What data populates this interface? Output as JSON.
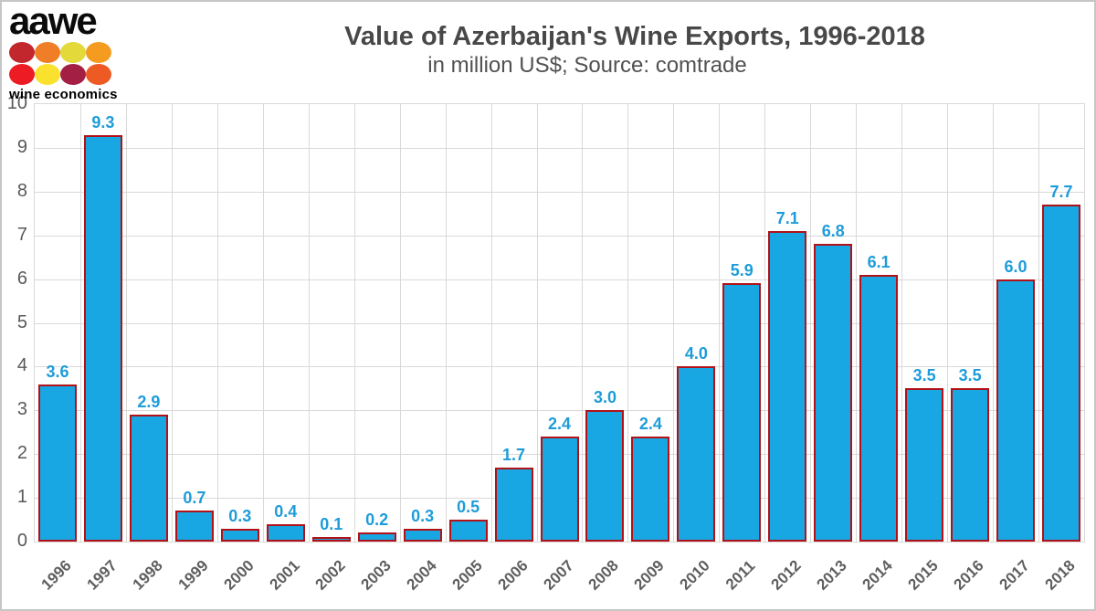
{
  "logo": {
    "brand": "aawe",
    "tagline": "wine economics",
    "dot_colors": [
      "#c1272d",
      "#f07e26",
      "#e3d93a",
      "#f59b20",
      "#ed1c24",
      "#f9e12d",
      "#a31f44",
      "#ee5a24"
    ]
  },
  "chart_data": {
    "type": "bar",
    "title": "Value of Azerbaijan's Wine Exports, 1996-2018",
    "subtitle": "in million US$; Source: comtrade",
    "categories": [
      "1996",
      "1997",
      "1998",
      "1999",
      "2000",
      "2001",
      "2002",
      "2003",
      "2004",
      "2005",
      "2006",
      "2007",
      "2008",
      "2009",
      "2010",
      "2011",
      "2012",
      "2013",
      "2014",
      "2015",
      "2016",
      "2017",
      "2018"
    ],
    "values": [
      3.6,
      9.3,
      2.9,
      0.7,
      0.3,
      0.4,
      0.1,
      0.2,
      0.3,
      0.5,
      1.7,
      2.4,
      3.0,
      2.4,
      4.0,
      5.9,
      7.1,
      6.8,
      6.1,
      3.5,
      3.5,
      6.0,
      7.7
    ],
    "data_labels": [
      "3.6",
      "9.3",
      "2.9",
      "0.7",
      "0.3",
      "0.4",
      "0.1",
      "0.2",
      "0.3",
      "0.5",
      "1.7",
      "2.4",
      "3.0",
      "2.4",
      "4.0",
      "5.9",
      "7.1",
      "6.8",
      "6.1",
      "3.5",
      "3.5",
      "6.0",
      "7.7"
    ],
    "ylim": [
      0,
      10
    ],
    "ytick_labels": [
      "0",
      "1",
      "2",
      "3",
      "4",
      "5",
      "6",
      "7",
      "8",
      "9",
      "10"
    ],
    "grid": "both",
    "legend": "none",
    "colors": {
      "bar_fill": "#19a7e3",
      "bar_border": "#b01218",
      "data_label": "#1e9cd9",
      "gridline": "#d9d9d9",
      "axis_text": "#595959"
    }
  }
}
